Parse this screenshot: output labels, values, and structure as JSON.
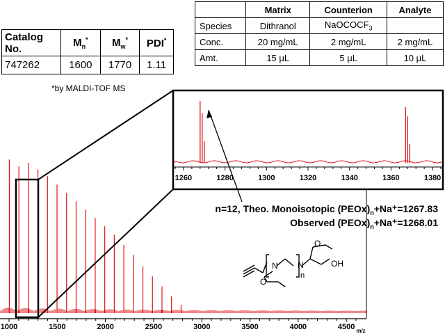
{
  "catalog_table": {
    "headers": [
      "Catalog No.",
      "Mn*",
      "Mw*",
      "PDI*"
    ],
    "header_main": [
      "Catalog No.",
      "M",
      "M",
      "PDI"
    ],
    "header_sub": [
      "",
      "n",
      "w",
      ""
    ],
    "header_sup": [
      "",
      "*",
      "*",
      "*"
    ],
    "row": [
      "747262",
      "1600",
      "1770",
      "1.11"
    ],
    "footnote": "*by MALDI-TOF MS"
  },
  "conditions_table": {
    "headers": [
      "",
      "Matrix",
      "Counterion",
      "Analyte"
    ],
    "rows": [
      [
        "Species",
        "Dithranol",
        "NaOCOCF3",
        ""
      ],
      [
        "Conc.",
        "20 mg/mL",
        "2 mg/mL",
        "2 mg/mL"
      ],
      [
        "Amt.",
        "15 μL",
        "5 μL",
        "10 μL"
      ]
    ],
    "counterion_main": "NaOCOCF",
    "counterion_sub": "3"
  },
  "annotation": {
    "line1_prefix": "n=12, Theo. Monoisotopic (PEOx)",
    "line1_sub": "n",
    "line1_suffix": "+Na⁺=1267.83",
    "line2_prefix": "Observed (PEOx)",
    "line2_sub": "n",
    "line2_suffix": "+Na⁺=1268.01"
  },
  "structure": {
    "label_n_left": "N",
    "label_n_right": "N",
    "label_oh": "OH",
    "label_o_top": "O",
    "label_o_bottom": "O",
    "label_repeat": "n"
  },
  "colors": {
    "spectrum": "#e01010",
    "axis": "#000000"
  },
  "chart_data": [
    {
      "type": "line",
      "title": "",
      "xlabel": "m/z",
      "ylabel": "",
      "xlim": [
        1000,
        4600
      ],
      "x_ticks": [
        1000,
        1500,
        2000,
        2500,
        3000,
        3500,
        4000,
        4500
      ],
      "peaks": {
        "x": [
          1003,
          1102,
          1201,
          1300,
          1399,
          1498,
          1597,
          1696,
          1795,
          1894,
          1993,
          2092,
          2191,
          2290,
          2389,
          2488,
          2587,
          2686,
          2785
        ],
        "intensity": [
          0.92,
          0.88,
          0.9,
          0.86,
          0.82,
          0.77,
          0.72,
          0.67,
          0.62,
          0.57,
          0.52,
          0.47,
          0.41,
          0.35,
          0.28,
          0.22,
          0.16,
          0.1,
          0.05
        ]
      },
      "zoom_box_x": [
        1250,
        1385
      ]
    },
    {
      "type": "line",
      "title": "",
      "xlabel": "",
      "ylabel": "",
      "xlim": [
        1255,
        1385
      ],
      "x_ticks": [
        1260,
        1280,
        1300,
        1320,
        1340,
        1360,
        1380
      ],
      "peaks": {
        "x": [
          1268.0,
          1269.0,
          1270.0,
          1367.0,
          1368.0,
          1369.0
        ],
        "intensity": [
          1.0,
          0.8,
          0.35,
          0.9,
          0.75,
          0.3
        ]
      }
    }
  ]
}
